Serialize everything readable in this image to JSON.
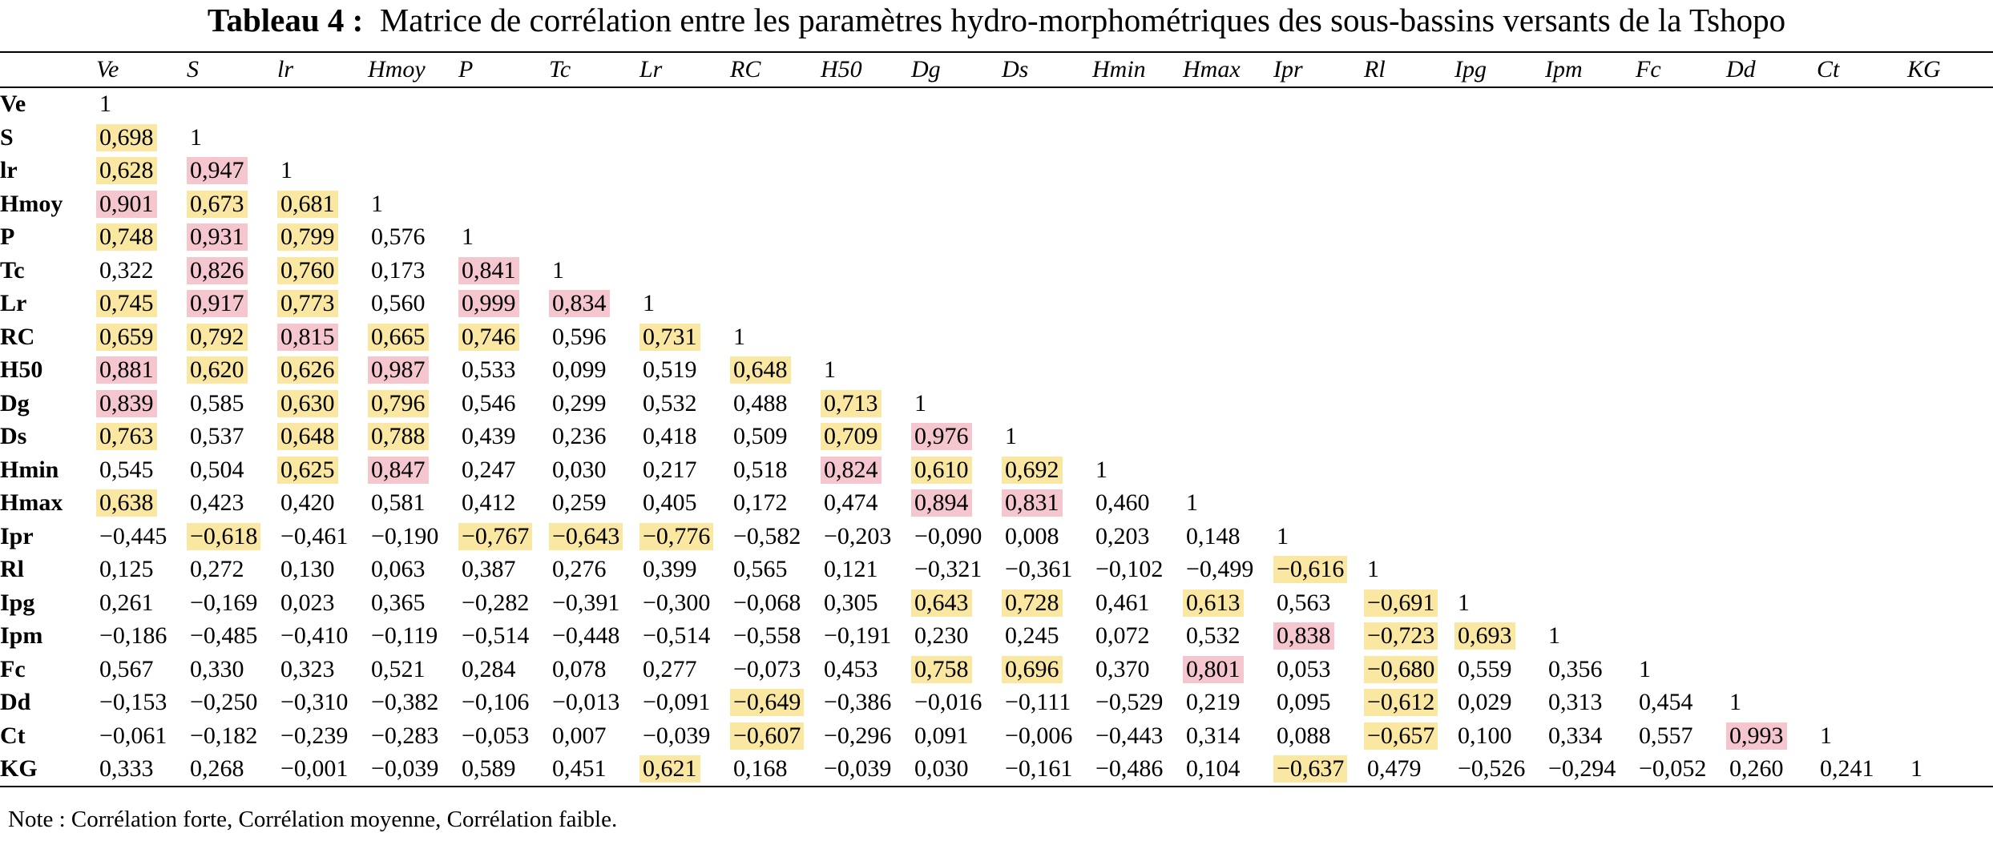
{
  "title": {
    "label": "Tableau 4 :",
    "text": "Matrice de corrélation entre les paramètres hydro-morphométriques des sous-bassins versants de la Tshopo"
  },
  "colors": {
    "strong": "#f6c6cf",
    "medium": "#fae7a1"
  },
  "columns": [
    "Ve",
    "S",
    "lr",
    "Hmoy",
    "P",
    "Tc",
    "Lr",
    "RC",
    "H50",
    "Dg",
    "Ds",
    "Hmin",
    "Hmax",
    "Ipr",
    "Rl",
    "Ipg",
    "Ipm",
    "Fc",
    "Dd",
    "Ct",
    "KG"
  ],
  "rows": [
    {
      "label": "Ve",
      "cells": [
        {
          "v": "1",
          "h": ""
        }
      ]
    },
    {
      "label": "S",
      "cells": [
        {
          "v": "0,698",
          "h": "m"
        },
        {
          "v": "1",
          "h": ""
        }
      ]
    },
    {
      "label": "lr",
      "cells": [
        {
          "v": "0,628",
          "h": "m"
        },
        {
          "v": "0,947",
          "h": "s"
        },
        {
          "v": "1",
          "h": ""
        }
      ]
    },
    {
      "label": "Hmoy",
      "cells": [
        {
          "v": "0,901",
          "h": "s"
        },
        {
          "v": "0,673",
          "h": "m"
        },
        {
          "v": "0,681",
          "h": "m"
        },
        {
          "v": "1",
          "h": ""
        }
      ]
    },
    {
      "label": "P",
      "cells": [
        {
          "v": "0,748",
          "h": "m"
        },
        {
          "v": "0,931",
          "h": "s"
        },
        {
          "v": "0,799",
          "h": "m"
        },
        {
          "v": "0,576",
          "h": ""
        },
        {
          "v": "1",
          "h": ""
        }
      ]
    },
    {
      "label": "Tc",
      "cells": [
        {
          "v": "0,322",
          "h": ""
        },
        {
          "v": "0,826",
          "h": "s"
        },
        {
          "v": "0,760",
          "h": "m"
        },
        {
          "v": "0,173",
          "h": ""
        },
        {
          "v": "0,841",
          "h": "s"
        },
        {
          "v": "1",
          "h": ""
        }
      ]
    },
    {
      "label": "Lr",
      "cells": [
        {
          "v": "0,745",
          "h": "m"
        },
        {
          "v": "0,917",
          "h": "s"
        },
        {
          "v": "0,773",
          "h": "m"
        },
        {
          "v": "0,560",
          "h": ""
        },
        {
          "v": "0,999",
          "h": "s"
        },
        {
          "v": "0,834",
          "h": "s"
        },
        {
          "v": "1",
          "h": ""
        }
      ]
    },
    {
      "label": "RC",
      "cells": [
        {
          "v": "0,659",
          "h": "m"
        },
        {
          "v": "0,792",
          "h": "m"
        },
        {
          "v": "0,815",
          "h": "s"
        },
        {
          "v": "0,665",
          "h": "m"
        },
        {
          "v": "0,746",
          "h": "m"
        },
        {
          "v": "0,596",
          "h": ""
        },
        {
          "v": "0,731",
          "h": "m"
        },
        {
          "v": "1",
          "h": ""
        }
      ]
    },
    {
      "label": "H50",
      "cells": [
        {
          "v": "0,881",
          "h": "s"
        },
        {
          "v": "0,620",
          "h": "m"
        },
        {
          "v": "0,626",
          "h": "m"
        },
        {
          "v": "0,987",
          "h": "s"
        },
        {
          "v": "0,533",
          "h": ""
        },
        {
          "v": "0,099",
          "h": ""
        },
        {
          "v": "0,519",
          "h": ""
        },
        {
          "v": "0,648",
          "h": "m"
        },
        {
          "v": "1",
          "h": ""
        }
      ]
    },
    {
      "label": "Dg",
      "cells": [
        {
          "v": "0,839",
          "h": "s"
        },
        {
          "v": "0,585",
          "h": ""
        },
        {
          "v": "0,630",
          "h": "m"
        },
        {
          "v": "0,796",
          "h": "m"
        },
        {
          "v": "0,546",
          "h": ""
        },
        {
          "v": "0,299",
          "h": ""
        },
        {
          "v": "0,532",
          "h": ""
        },
        {
          "v": "0,488",
          "h": ""
        },
        {
          "v": "0,713",
          "h": "m"
        },
        {
          "v": "1",
          "h": ""
        }
      ]
    },
    {
      "label": "Ds",
      "cells": [
        {
          "v": "0,763",
          "h": "m"
        },
        {
          "v": "0,537",
          "h": ""
        },
        {
          "v": "0,648",
          "h": "m"
        },
        {
          "v": "0,788",
          "h": "m"
        },
        {
          "v": "0,439",
          "h": ""
        },
        {
          "v": "0,236",
          "h": ""
        },
        {
          "v": "0,418",
          "h": ""
        },
        {
          "v": "0,509",
          "h": ""
        },
        {
          "v": "0,709",
          "h": "m"
        },
        {
          "v": "0,976",
          "h": "s"
        },
        {
          "v": "1",
          "h": ""
        }
      ]
    },
    {
      "label": "Hmin",
      "cells": [
        {
          "v": "0,545",
          "h": ""
        },
        {
          "v": "0,504",
          "h": ""
        },
        {
          "v": "0,625",
          "h": "m"
        },
        {
          "v": "0,847",
          "h": "s"
        },
        {
          "v": "0,247",
          "h": ""
        },
        {
          "v": "0,030",
          "h": ""
        },
        {
          "v": "0,217",
          "h": ""
        },
        {
          "v": "0,518",
          "h": ""
        },
        {
          "v": "0,824",
          "h": "s"
        },
        {
          "v": "0,610",
          "h": "m"
        },
        {
          "v": "0,692",
          "h": "m"
        },
        {
          "v": "1",
          "h": ""
        }
      ]
    },
    {
      "label": "Hmax",
      "cells": [
        {
          "v": "0,638",
          "h": "m"
        },
        {
          "v": "0,423",
          "h": ""
        },
        {
          "v": "0,420",
          "h": ""
        },
        {
          "v": "0,581",
          "h": ""
        },
        {
          "v": "0,412",
          "h": ""
        },
        {
          "v": "0,259",
          "h": ""
        },
        {
          "v": "0,405",
          "h": ""
        },
        {
          "v": "0,172",
          "h": ""
        },
        {
          "v": "0,474",
          "h": ""
        },
        {
          "v": "0,894",
          "h": "s"
        },
        {
          "v": "0,831",
          "h": "s"
        },
        {
          "v": "0,460",
          "h": ""
        },
        {
          "v": "1",
          "h": ""
        }
      ]
    },
    {
      "label": "Ipr",
      "cells": [
        {
          "v": "−0,445",
          "h": ""
        },
        {
          "v": "−0,618",
          "h": "m"
        },
        {
          "v": "−0,461",
          "h": ""
        },
        {
          "v": "−0,190",
          "h": ""
        },
        {
          "v": "−0,767",
          "h": "m"
        },
        {
          "v": "−0,643",
          "h": "m"
        },
        {
          "v": "−0,776",
          "h": "m"
        },
        {
          "v": "−0,582",
          "h": ""
        },
        {
          "v": "−0,203",
          "h": ""
        },
        {
          "v": "−0,090",
          "h": ""
        },
        {
          "v": "0,008",
          "h": ""
        },
        {
          "v": "0,203",
          "h": ""
        },
        {
          "v": "0,148",
          "h": ""
        },
        {
          "v": "1",
          "h": ""
        }
      ]
    },
    {
      "label": "Rl",
      "cells": [
        {
          "v": "0,125",
          "h": ""
        },
        {
          "v": "0,272",
          "h": ""
        },
        {
          "v": "0,130",
          "h": ""
        },
        {
          "v": "0,063",
          "h": ""
        },
        {
          "v": "0,387",
          "h": ""
        },
        {
          "v": "0,276",
          "h": ""
        },
        {
          "v": "0,399",
          "h": ""
        },
        {
          "v": "0,565",
          "h": ""
        },
        {
          "v": "0,121",
          "h": ""
        },
        {
          "v": "−0,321",
          "h": ""
        },
        {
          "v": "−0,361",
          "h": ""
        },
        {
          "v": "−0,102",
          "h": ""
        },
        {
          "v": "−0,499",
          "h": ""
        },
        {
          "v": "−0,616",
          "h": "m"
        },
        {
          "v": "1",
          "h": ""
        }
      ]
    },
    {
      "label": "Ipg",
      "cells": [
        {
          "v": "0,261",
          "h": ""
        },
        {
          "v": "−0,169",
          "h": ""
        },
        {
          "v": "0,023",
          "h": ""
        },
        {
          "v": "0,365",
          "h": ""
        },
        {
          "v": "−0,282",
          "h": ""
        },
        {
          "v": "−0,391",
          "h": ""
        },
        {
          "v": "−0,300",
          "h": ""
        },
        {
          "v": "−0,068",
          "h": ""
        },
        {
          "v": "0,305",
          "h": ""
        },
        {
          "v": "0,643",
          "h": "m"
        },
        {
          "v": "0,728",
          "h": "m"
        },
        {
          "v": "0,461",
          "h": ""
        },
        {
          "v": "0,613",
          "h": "m"
        },
        {
          "v": "0,563",
          "h": ""
        },
        {
          "v": "−0,691",
          "h": "m"
        },
        {
          "v": "1",
          "h": ""
        }
      ]
    },
    {
      "label": "Ipm",
      "cells": [
        {
          "v": "−0,186",
          "h": ""
        },
        {
          "v": "−0,485",
          "h": ""
        },
        {
          "v": "−0,410",
          "h": ""
        },
        {
          "v": "−0,119",
          "h": ""
        },
        {
          "v": "−0,514",
          "h": ""
        },
        {
          "v": "−0,448",
          "h": ""
        },
        {
          "v": "−0,514",
          "h": ""
        },
        {
          "v": "−0,558",
          "h": ""
        },
        {
          "v": "−0,191",
          "h": ""
        },
        {
          "v": "0,230",
          "h": ""
        },
        {
          "v": "0,245",
          "h": ""
        },
        {
          "v": "0,072",
          "h": ""
        },
        {
          "v": "0,532",
          "h": ""
        },
        {
          "v": "0,838",
          "h": "s"
        },
        {
          "v": "−0,723",
          "h": "m"
        },
        {
          "v": "0,693",
          "h": "m"
        },
        {
          "v": "1",
          "h": ""
        }
      ]
    },
    {
      "label": "Fc",
      "cells": [
        {
          "v": "0,567",
          "h": ""
        },
        {
          "v": "0,330",
          "h": ""
        },
        {
          "v": "0,323",
          "h": ""
        },
        {
          "v": "0,521",
          "h": ""
        },
        {
          "v": "0,284",
          "h": ""
        },
        {
          "v": "0,078",
          "h": ""
        },
        {
          "v": "0,277",
          "h": ""
        },
        {
          "v": "−0,073",
          "h": ""
        },
        {
          "v": "0,453",
          "h": ""
        },
        {
          "v": "0,758",
          "h": "m"
        },
        {
          "v": "0,696",
          "h": "m"
        },
        {
          "v": "0,370",
          "h": ""
        },
        {
          "v": "0,801",
          "h": "s"
        },
        {
          "v": "0,053",
          "h": ""
        },
        {
          "v": "−0,680",
          "h": "m"
        },
        {
          "v": "0,559",
          "h": ""
        },
        {
          "v": "0,356",
          "h": ""
        },
        {
          "v": "1",
          "h": ""
        }
      ]
    },
    {
      "label": "Dd",
      "cells": [
        {
          "v": "−0,153",
          "h": ""
        },
        {
          "v": "−0,250",
          "h": ""
        },
        {
          "v": "−0,310",
          "h": ""
        },
        {
          "v": "−0,382",
          "h": ""
        },
        {
          "v": "−0,106",
          "h": ""
        },
        {
          "v": "−0,013",
          "h": ""
        },
        {
          "v": "−0,091",
          "h": ""
        },
        {
          "v": "−0,649",
          "h": "m"
        },
        {
          "v": "−0,386",
          "h": ""
        },
        {
          "v": "−0,016",
          "h": ""
        },
        {
          "v": "−0,111",
          "h": ""
        },
        {
          "v": "−0,529",
          "h": ""
        },
        {
          "v": "0,219",
          "h": ""
        },
        {
          "v": "0,095",
          "h": ""
        },
        {
          "v": "−0,612",
          "h": "m"
        },
        {
          "v": "0,029",
          "h": ""
        },
        {
          "v": "0,313",
          "h": ""
        },
        {
          "v": "0,454",
          "h": ""
        },
        {
          "v": "1",
          "h": ""
        }
      ]
    },
    {
      "label": "Ct",
      "cells": [
        {
          "v": "−0,061",
          "h": ""
        },
        {
          "v": "−0,182",
          "h": ""
        },
        {
          "v": "−0,239",
          "h": ""
        },
        {
          "v": "−0,283",
          "h": ""
        },
        {
          "v": "−0,053",
          "h": ""
        },
        {
          "v": "0,007",
          "h": ""
        },
        {
          "v": "−0,039",
          "h": ""
        },
        {
          "v": "−0,607",
          "h": "m"
        },
        {
          "v": "−0,296",
          "h": ""
        },
        {
          "v": "0,091",
          "h": ""
        },
        {
          "v": "−0,006",
          "h": ""
        },
        {
          "v": "−0,443",
          "h": ""
        },
        {
          "v": "0,314",
          "h": ""
        },
        {
          "v": "0,088",
          "h": ""
        },
        {
          "v": "−0,657",
          "h": "m"
        },
        {
          "v": "0,100",
          "h": ""
        },
        {
          "v": "0,334",
          "h": ""
        },
        {
          "v": "0,557",
          "h": ""
        },
        {
          "v": "0,993",
          "h": "s"
        },
        {
          "v": "1",
          "h": ""
        }
      ]
    },
    {
      "label": "KG",
      "cells": [
        {
          "v": "0,333",
          "h": ""
        },
        {
          "v": "0,268",
          "h": ""
        },
        {
          "v": "−0,001",
          "h": ""
        },
        {
          "v": "−0,039",
          "h": ""
        },
        {
          "v": "0,589",
          "h": ""
        },
        {
          "v": "0,451",
          "h": ""
        },
        {
          "v": "0,621",
          "h": "m"
        },
        {
          "v": "0,168",
          "h": ""
        },
        {
          "v": "−0,039",
          "h": ""
        },
        {
          "v": "0,030",
          "h": ""
        },
        {
          "v": "−0,161",
          "h": ""
        },
        {
          "v": "−0,486",
          "h": ""
        },
        {
          "v": "0,104",
          "h": ""
        },
        {
          "v": "−0,637",
          "h": "m"
        },
        {
          "v": "0,479",
          "h": ""
        },
        {
          "v": "−0,526",
          "h": ""
        },
        {
          "v": "−0,294",
          "h": ""
        },
        {
          "v": "−0,052",
          "h": ""
        },
        {
          "v": "0,260",
          "h": ""
        },
        {
          "v": "0,241",
          "h": ""
        },
        {
          "v": "1",
          "h": ""
        }
      ]
    }
  ],
  "note": "Note : Corrélation forte, Corrélation moyenne, Corrélation faible."
}
